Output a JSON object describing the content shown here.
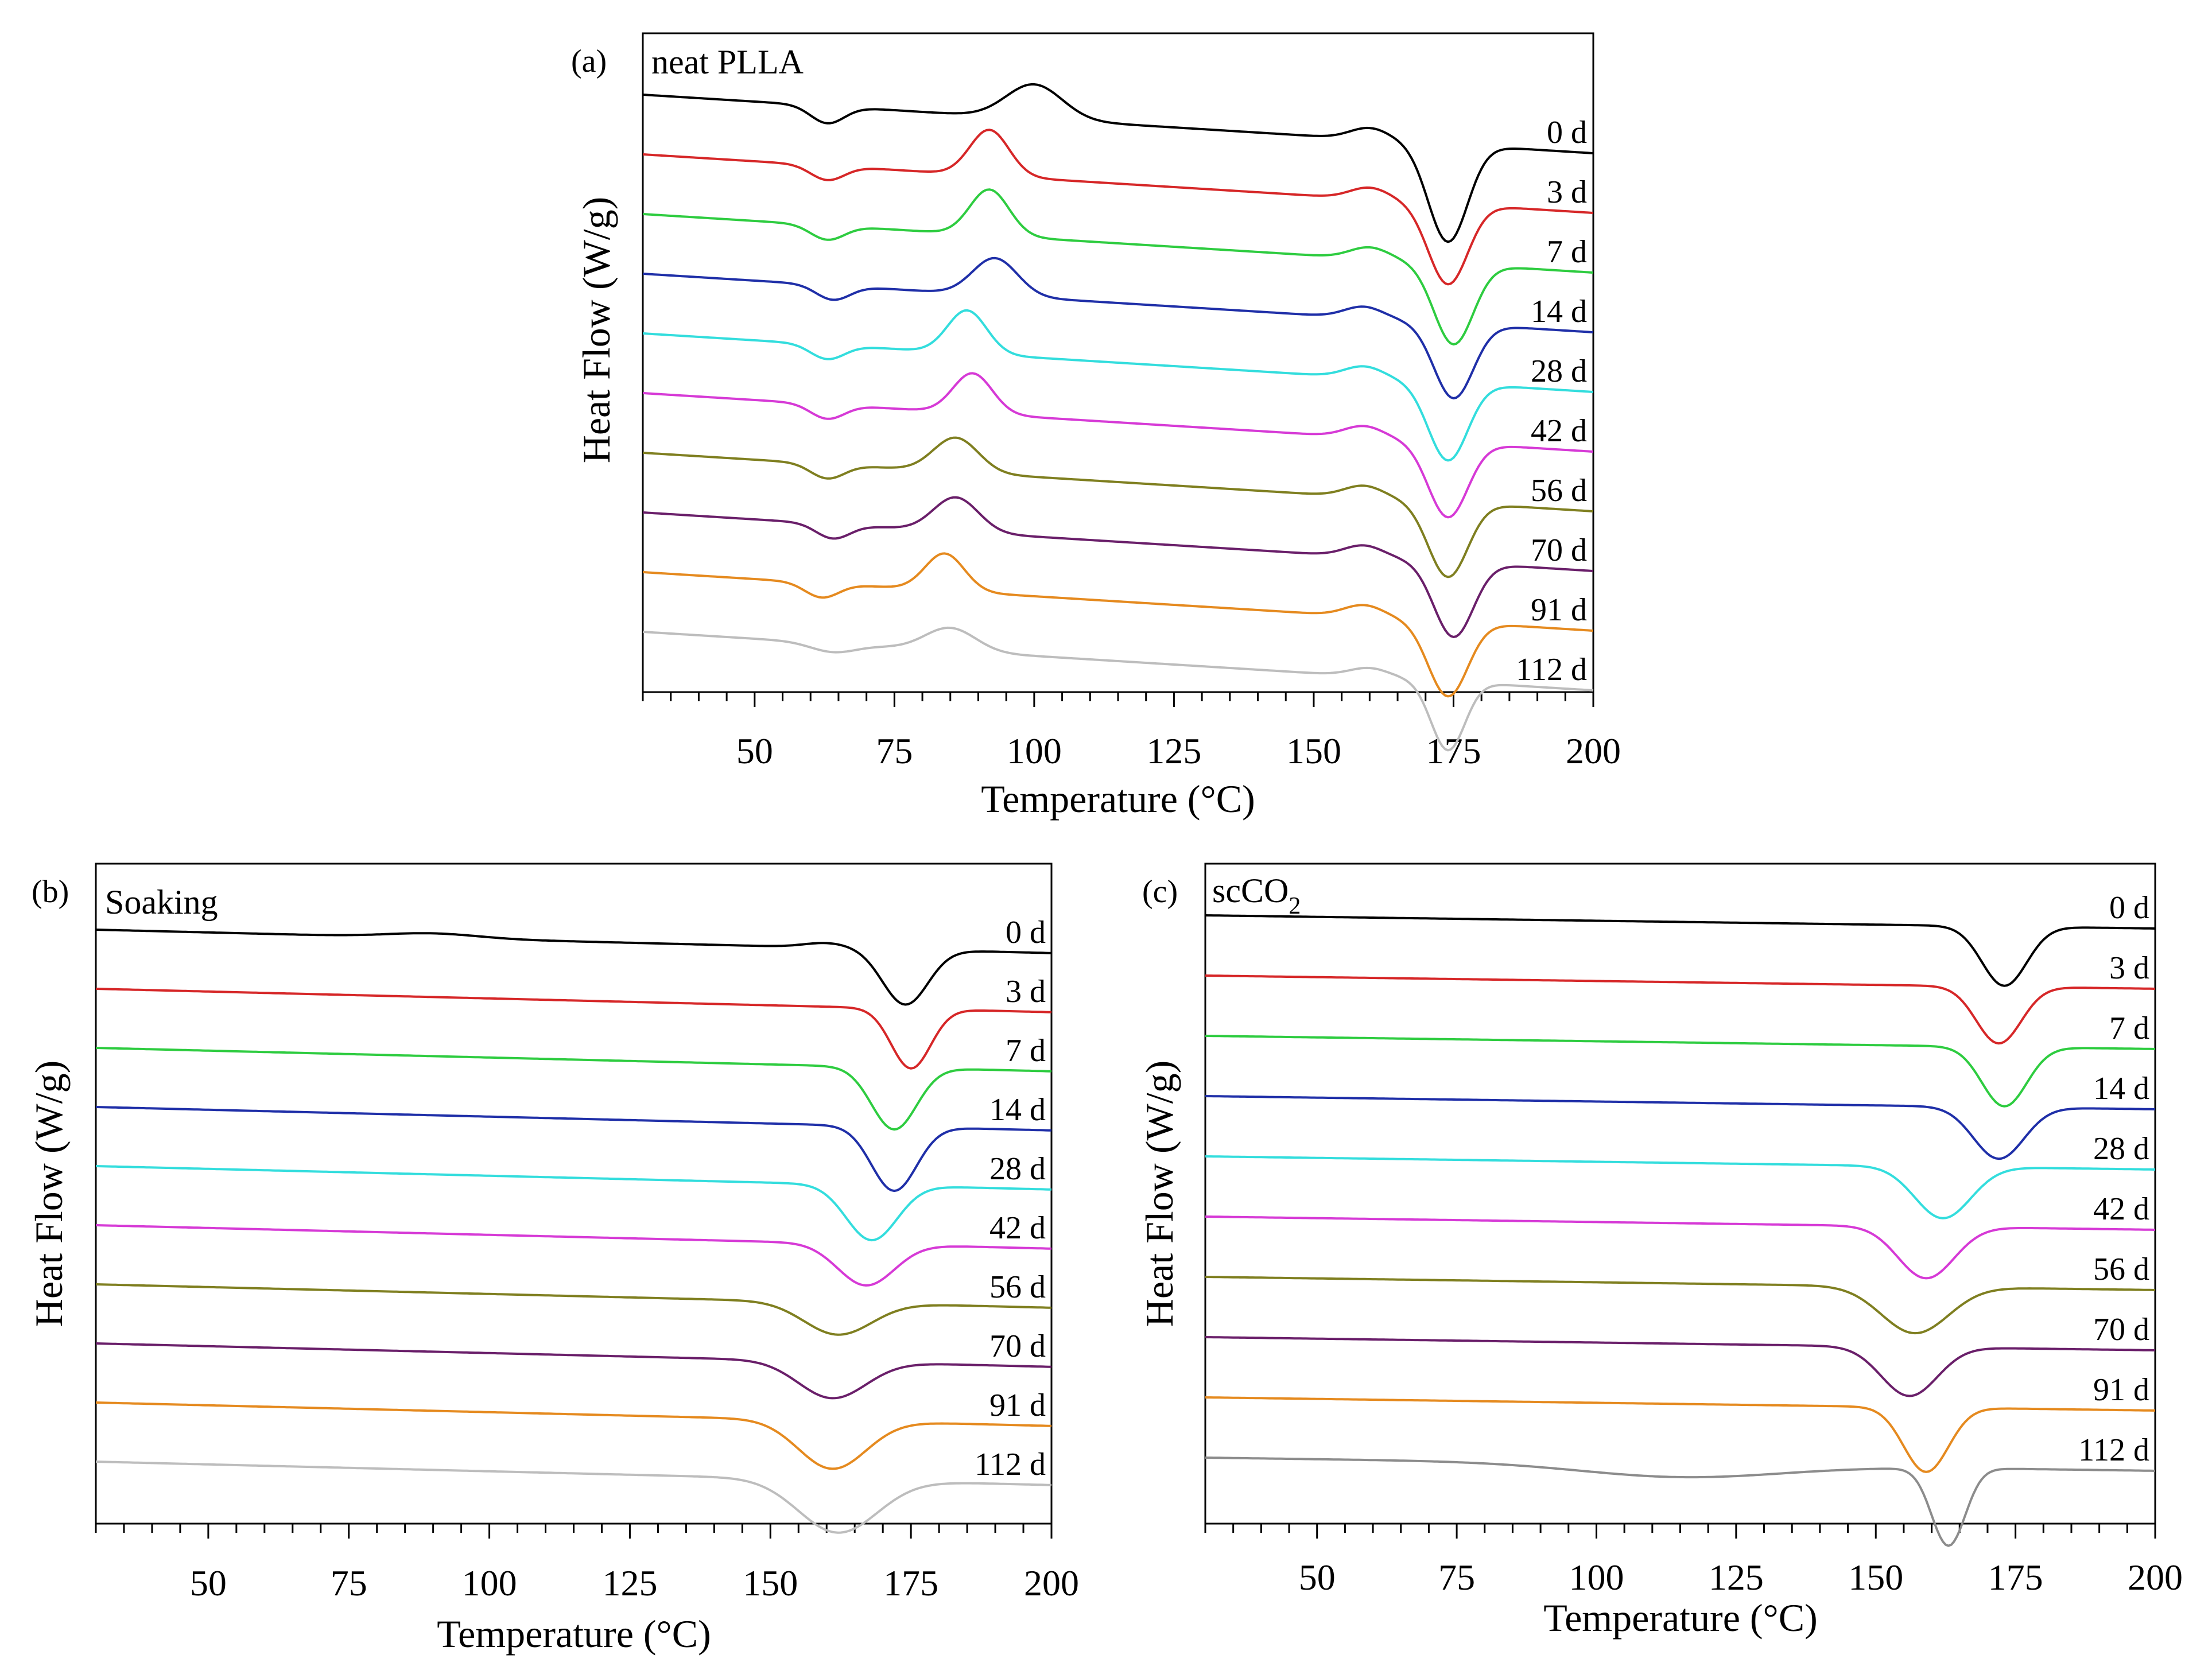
{
  "chart_data": [
    {
      "type": "line",
      "panel_label": "(a)",
      "title": "neat PLLA",
      "xlabel": "Temperature (°C)",
      "ylabel": "Heat Flow (W/g)",
      "xlim": [
        30,
        200
      ],
      "xticks": [
        50,
        75,
        100,
        125,
        150,
        175,
        200
      ],
      "series": [
        {
          "name": "0 d",
          "color": "#000000",
          "baseline": 0,
          "slope": 0.02,
          "features": [
            [
              63,
              0.6,
              3
            ],
            [
              100,
              -1.2,
              5
            ],
            [
              160,
              -0.4,
              3.5
            ],
            [
              174,
              3.4,
              3.5
            ]
          ]
        },
        {
          "name": "3 d",
          "color": "#d62728",
          "baseline": 1,
          "slope": 0.02,
          "features": [
            [
              63,
              0.5,
              3
            ],
            [
              92,
              -1.6,
              3.5
            ],
            [
              160,
              -0.4,
              3.5
            ],
            [
              174,
              2.8,
              3.5
            ]
          ]
        },
        {
          "name": "7 d",
          "color": "#2ecc40",
          "baseline": 2,
          "slope": 0.02,
          "features": [
            [
              63,
              0.5,
              3
            ],
            [
              92,
              -1.6,
              3.5
            ],
            [
              160,
              -0.4,
              3.5
            ],
            [
              175,
              2.8,
              3.5
            ]
          ]
        },
        {
          "name": "14 d",
          "color": "#1f2fa8",
          "baseline": 3,
          "slope": 0.02,
          "features": [
            [
              64,
              0.5,
              3
            ],
            [
              93,
              -1.3,
              4
            ],
            [
              159,
              -0.4,
              3.5
            ],
            [
              175,
              2.6,
              3.5
            ]
          ]
        },
        {
          "name": "28 d",
          "color": "#33dddd",
          "baseline": 4,
          "slope": 0.02,
          "features": [
            [
              63,
              0.5,
              3
            ],
            [
              88,
              -1.5,
              3.5
            ],
            [
              159,
              -0.4,
              3.5
            ],
            [
              174,
              2.7,
              3.5
            ]
          ]
        },
        {
          "name": "42 d",
          "color": "#d63ad6",
          "baseline": 5,
          "slope": 0.02,
          "features": [
            [
              63,
              0.5,
              3
            ],
            [
              89,
              -1.4,
              3.5
            ],
            [
              159,
              -0.4,
              3.5
            ],
            [
              174,
              2.6,
              3.5
            ]
          ]
        },
        {
          "name": "56 d",
          "color": "#7f7f20",
          "baseline": 6,
          "slope": 0.02,
          "features": [
            [
              63,
              0.5,
              3
            ],
            [
              86,
              -1.2,
              4
            ],
            [
              159,
              -0.4,
              3.5
            ],
            [
              174,
              2.6,
              3.5
            ]
          ]
        },
        {
          "name": "70 d",
          "color": "#6a1f6a",
          "baseline": 7,
          "slope": 0.02,
          "features": [
            [
              64,
              0.5,
              3
            ],
            [
              86,
              -1.2,
              4
            ],
            [
              159,
              -0.4,
              3.5
            ],
            [
              175,
              2.6,
              3.5
            ]
          ]
        },
        {
          "name": "91 d",
          "color": "#e58a1f",
          "baseline": 8,
          "slope": 0.02,
          "features": [
            [
              62,
              0.5,
              3
            ],
            [
              84,
              -1.3,
              3.5
            ],
            [
              159,
              -0.4,
              3.5
            ],
            [
              174,
              2.6,
              3.5
            ]
          ]
        },
        {
          "name": "112 d",
          "color": "#bdbdbd",
          "baseline": 9,
          "slope": 0.02,
          "features": [
            [
              64,
              0.3,
              4
            ],
            [
              85,
              -0.8,
              4.5
            ],
            [
              160,
              -0.3,
              3.5
            ],
            [
              174,
              2.4,
              3
            ]
          ]
        }
      ]
    },
    {
      "type": "line",
      "panel_label": "(b)",
      "title": "Soaking",
      "xlabel": "Temperature (°C)",
      "ylabel": "Heat Flow (W/g)",
      "xlim": [
        30,
        200
      ],
      "xticks": [
        50,
        75,
        100,
        125,
        150,
        175,
        200
      ],
      "series": [
        {
          "name": "0 d",
          "color": "#000000",
          "baseline": 0,
          "slope": 0.01,
          "features": [
            [
              90,
              -0.2,
              8
            ],
            [
              160,
              -0.2,
              4
            ],
            [
              174,
              2.4,
              4
            ]
          ]
        },
        {
          "name": "3 d",
          "color": "#d62728",
          "baseline": 1,
          "slope": 0.01,
          "features": [
            [
              175,
              2.6,
              3.5
            ]
          ]
        },
        {
          "name": "7 d",
          "color": "#2ecc40",
          "baseline": 2,
          "slope": 0.01,
          "features": [
            [
              172,
              2.7,
              4
            ]
          ]
        },
        {
          "name": "14 d",
          "color": "#1f2fa8",
          "baseline": 3,
          "slope": 0.01,
          "features": [
            [
              172,
              2.8,
              4
            ]
          ]
        },
        {
          "name": "28 d",
          "color": "#33dddd",
          "baseline": 4,
          "slope": 0.01,
          "features": [
            [
              168,
              2.4,
              4.5
            ]
          ]
        },
        {
          "name": "42 d",
          "color": "#d63ad6",
          "baseline": 5,
          "slope": 0.01,
          "features": [
            [
              167,
              1.8,
              5
            ]
          ]
        },
        {
          "name": "56 d",
          "color": "#7f7f20",
          "baseline": 6,
          "slope": 0.01,
          "features": [
            [
              162,
              1.4,
              6
            ]
          ]
        },
        {
          "name": "70 d",
          "color": "#6a1f6a",
          "baseline": 7,
          "slope": 0.01,
          "features": [
            [
              161,
              1.6,
              6
            ]
          ]
        },
        {
          "name": "91 d",
          "color": "#e58a1f",
          "baseline": 8,
          "slope": 0.01,
          "features": [
            [
              161,
              2.1,
              6
            ]
          ]
        },
        {
          "name": "112 d",
          "color": "#bdbdbd",
          "baseline": 9,
          "slope": 0.01,
          "features": [
            [
              162,
              2.3,
              7
            ]
          ]
        }
      ]
    },
    {
      "type": "line",
      "panel_label": "(c)",
      "title": "scCO",
      "title_subscript": "2",
      "xlabel": "Temperature (°C)",
      "ylabel": "Heat Flow (W/g)",
      "xlim": [
        30,
        200
      ],
      "xticks": [
        50,
        75,
        100,
        125,
        150,
        175,
        200
      ],
      "series": [
        {
          "name": "0 d",
          "color": "#000000",
          "baseline": 0,
          "slope": 0.005,
          "features": [
            [
              173,
              2.3,
              4
            ]
          ]
        },
        {
          "name": "3 d",
          "color": "#d62728",
          "baseline": 1,
          "slope": 0.005,
          "features": [
            [
              172,
              2.2,
              4
            ]
          ]
        },
        {
          "name": "7 d",
          "color": "#2ecc40",
          "baseline": 2,
          "slope": 0.005,
          "features": [
            [
              173,
              2.3,
              4
            ]
          ]
        },
        {
          "name": "14 d",
          "color": "#1f2fa8",
          "baseline": 3,
          "slope": 0.005,
          "features": [
            [
              172,
              2.0,
              4.5
            ]
          ]
        },
        {
          "name": "28 d",
          "color": "#33dddd",
          "baseline": 4,
          "slope": 0.005,
          "features": [
            [
              162,
              2.0,
              5
            ]
          ]
        },
        {
          "name": "42 d",
          "color": "#d63ad6",
          "baseline": 5,
          "slope": 0.005,
          "features": [
            [
              159,
              2.0,
              5
            ]
          ]
        },
        {
          "name": "56 d",
          "color": "#7f7f20",
          "baseline": 6,
          "slope": 0.005,
          "features": [
            [
              157,
              1.8,
              6
            ]
          ]
        },
        {
          "name": "70 d",
          "color": "#6a1f6a",
          "baseline": 7,
          "slope": 0.005,
          "features": [
            [
              156,
              1.9,
              5
            ]
          ]
        },
        {
          "name": "91 d",
          "color": "#e58a1f",
          "baseline": 8,
          "slope": 0.005,
          "features": [
            [
              159,
              2.5,
              4
            ]
          ]
        },
        {
          "name": "112 d",
          "color": "#8c8c8c",
          "baseline": 9,
          "slope": 0.005,
          "features": [
            [
              115,
              0.5,
              18
            ],
            [
              163,
              3.0,
              3
            ]
          ]
        }
      ]
    }
  ]
}
